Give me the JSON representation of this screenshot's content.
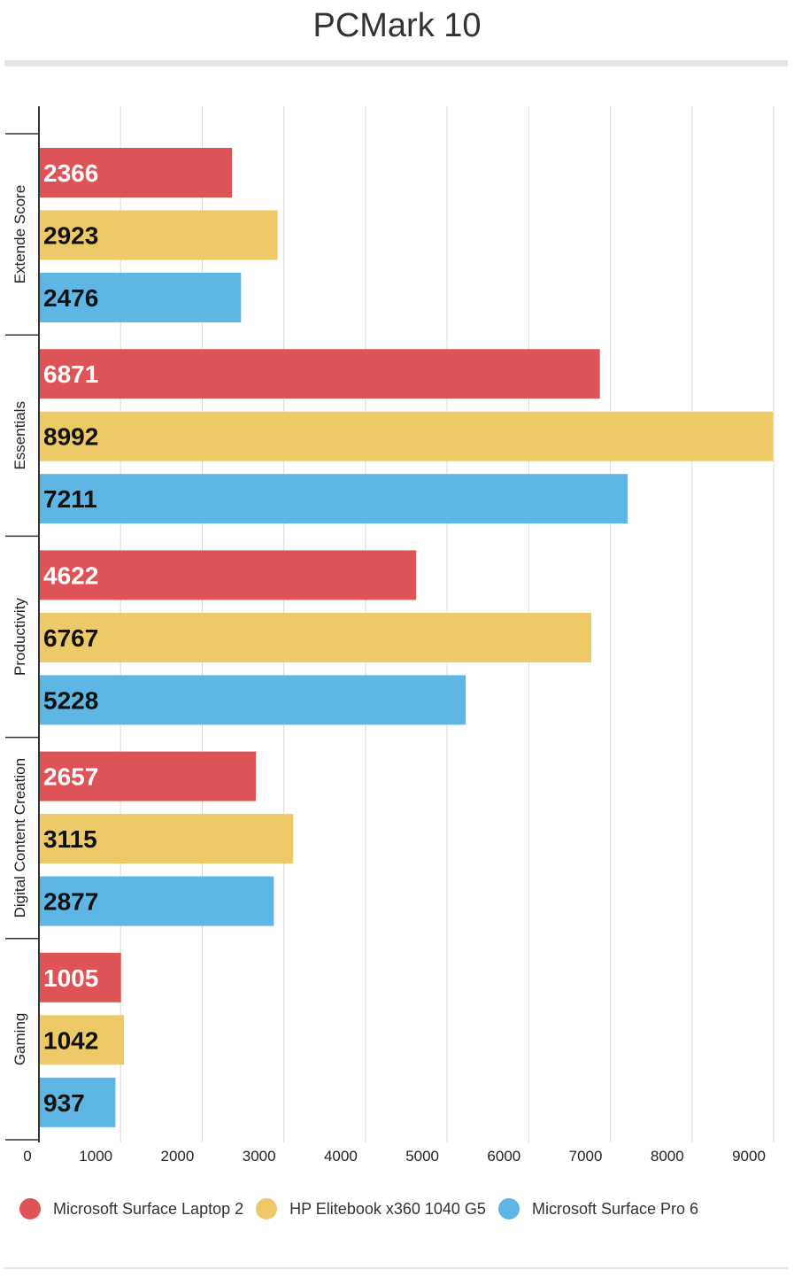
{
  "colors": {
    "series_1": "#dd5356",
    "series_2": "#edc967",
    "series_3": "#5db6e4",
    "label_light": "#ffffff",
    "label_dark": "#111111"
  },
  "chart_data": {
    "type": "bar",
    "orientation": "horizontal",
    "title": "PCMark 10",
    "categories": [
      "Extende Score",
      "Essentials",
      "Productivity",
      "Digital Content Creation",
      "Gaming"
    ],
    "series": [
      {
        "name": "Microsoft Surface Laptop 2",
        "values": [
          2366,
          6871,
          4622,
          2657,
          1005
        ]
      },
      {
        "name": "HP Elitebook x360 1040 G5",
        "values": [
          2923,
          8992,
          6767,
          3115,
          1042
        ]
      },
      {
        "name": "Microsoft Surface Pro 6",
        "values": [
          2476,
          7211,
          5228,
          2877,
          937
        ]
      }
    ],
    "xlim": [
      0,
      9000
    ],
    "xticks": [
      0,
      1000,
      2000,
      3000,
      4000,
      5000,
      6000,
      7000,
      8000,
      9000
    ],
    "grid": true,
    "legend_position": "bottom"
  }
}
